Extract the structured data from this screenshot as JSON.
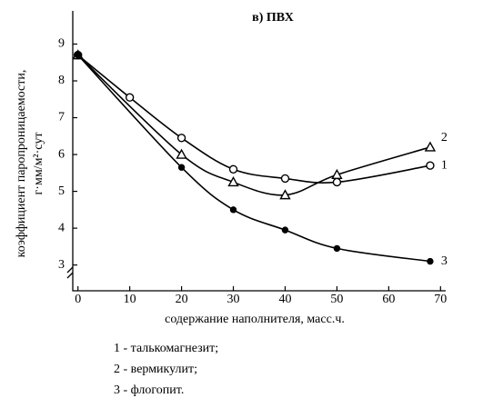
{
  "chart_data": {
    "type": "line",
    "title": "в) ПВХ",
    "y_label": [
      "коэффициент паропроницаемости,",
      "г·мм/м²·сут"
    ],
    "x_label": "содержание наполнителя, масс.ч.",
    "xlim": [
      -1,
      71
    ],
    "xticks": [
      0,
      10,
      20,
      30,
      40,
      50,
      60,
      70
    ],
    "ylim": [
      2.3,
      9.9
    ],
    "yticks": [
      3,
      4,
      5,
      6,
      7,
      8,
      9
    ],
    "series": [
      {
        "name": "1",
        "color": "#000000",
        "marker": "open-circle",
        "x": [
          0,
          10,
          20,
          30,
          40,
          50,
          68
        ],
        "values": [
          8.7,
          7.55,
          6.45,
          5.6,
          5.35,
          5.25,
          5.7
        ]
      },
      {
        "name": "2",
        "color": "#000000",
        "marker": "open-triangle",
        "x": [
          0,
          20,
          30,
          40,
          50,
          68
        ],
        "values": [
          8.7,
          6.0,
          5.25,
          4.9,
          5.45,
          6.2
        ]
      },
      {
        "name": "3",
        "color": "#000000",
        "marker": "filled-circle",
        "x": [
          0,
          20,
          30,
          40,
          50,
          68
        ],
        "values": [
          8.7,
          5.65,
          4.5,
          3.95,
          3.45,
          3.1
        ]
      }
    ],
    "legend": [
      "1 - талькомагнезит;",
      "2 - вермикулит;",
      "3 - флогопит."
    ]
  }
}
